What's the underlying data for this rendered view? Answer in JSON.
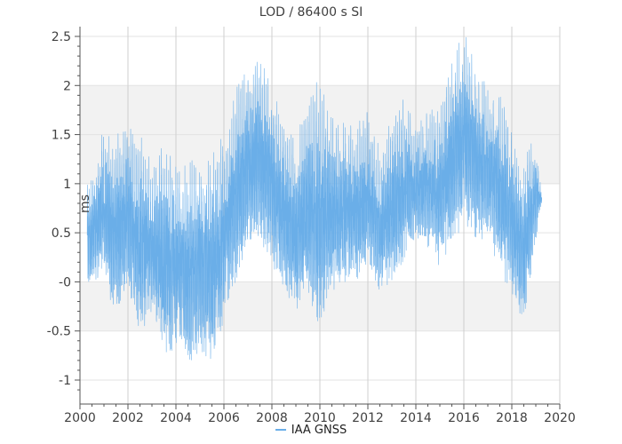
{
  "chart_data": {
    "type": "line",
    "title": "LOD / 86400 s SI",
    "ylabel": "ms",
    "xlabel": "",
    "x_ticks": [
      "2000",
      "2002",
      "2004",
      "2006",
      "2008",
      "2010",
      "2012",
      "2014",
      "2016",
      "2018",
      "2020"
    ],
    "y_ticks": [
      "-1",
      "-0.5",
      "-0",
      "0.5",
      "1",
      "1.5",
      "2",
      "2.5"
    ],
    "xlim": [
      2000,
      2020
    ],
    "ylim": [
      -1.15,
      2.6
    ],
    "grid": true,
    "legend_position": "bottom-center",
    "series": [
      {
        "name": "IAA GNSS",
        "color": "#6aaee8",
        "x_start": 2000.3,
        "x_end": 2019.25,
        "envelope_x": [
          2000.3,
          2001.0,
          2001.4,
          2002.0,
          2002.5,
          2003.0,
          2003.5,
          2004.0,
          2004.5,
          2005.0,
          2005.5,
          2006.0,
          2006.5,
          2007.0,
          2007.5,
          2008.0,
          2008.5,
          2009.0,
          2009.5,
          2010.0,
          2010.5,
          2011.0,
          2011.5,
          2012.0,
          2012.5,
          2013.0,
          2013.5,
          2014.0,
          2014.5,
          2015.0,
          2015.5,
          2016.0,
          2016.5,
          2017.0,
          2017.5,
          2018.0,
          2018.5,
          2019.0,
          2019.25
        ],
        "envelope_max": [
          1.0,
          1.6,
          1.5,
          1.7,
          1.6,
          1.2,
          1.5,
          1.3,
          1.3,
          1.3,
          1.4,
          1.5,
          2.0,
          2.2,
          2.35,
          2.0,
          1.7,
          1.5,
          1.9,
          2.1,
          1.7,
          1.7,
          1.6,
          1.8,
          1.4,
          1.7,
          1.9,
          1.6,
          1.8,
          1.8,
          2.3,
          2.55,
          2.3,
          2.0,
          2.0,
          1.6,
          1.3,
          1.5,
          0.9
        ],
        "envelope_min": [
          -0.25,
          -0.1,
          -0.5,
          -0.4,
          -0.75,
          -0.5,
          -1.0,
          -0.9,
          -1.1,
          -0.9,
          -1.1,
          -0.6,
          -0.2,
          0.1,
          0.2,
          0.0,
          -0.3,
          -0.5,
          -0.35,
          -0.8,
          -0.3,
          -0.2,
          -0.2,
          0.0,
          -0.3,
          -0.2,
          0.0,
          0.3,
          0.2,
          0.0,
          0.2,
          0.4,
          0.2,
          0.3,
          -0.1,
          -0.3,
          -0.6,
          0.3,
          0.8
        ]
      }
    ]
  }
}
